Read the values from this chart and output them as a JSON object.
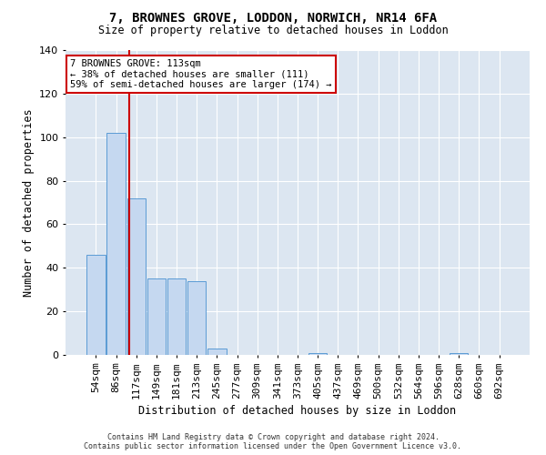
{
  "title_line1": "7, BROWNES GROVE, LODDON, NORWICH, NR14 6FA",
  "title_line2": "Size of property relative to detached houses in Loddon",
  "xlabel": "Distribution of detached houses by size in Loddon",
  "ylabel": "Number of detached properties",
  "bar_labels": [
    "54sqm",
    "86sqm",
    "117sqm",
    "149sqm",
    "181sqm",
    "213sqm",
    "245sqm",
    "277sqm",
    "309sqm",
    "341sqm",
    "373sqm",
    "405sqm",
    "437sqm",
    "469sqm",
    "500sqm",
    "532sqm",
    "564sqm",
    "596sqm",
    "628sqm",
    "660sqm",
    "692sqm"
  ],
  "bar_values": [
    46,
    102,
    72,
    35,
    35,
    34,
    3,
    0,
    0,
    0,
    0,
    1,
    0,
    0,
    0,
    0,
    0,
    0,
    1,
    0,
    0
  ],
  "bar_color": "#c5d8f0",
  "bar_edge_color": "#5b9bd5",
  "bg_color": "#dce6f1",
  "grid_color": "#ffffff",
  "vline_color": "#cc0000",
  "annotation_text": "7 BROWNES GROVE: 113sqm\n← 38% of detached houses are smaller (111)\n59% of semi-detached houses are larger (174) →",
  "annotation_box_color": "#ffffff",
  "annotation_box_edge": "#cc0000",
  "ylim": [
    0,
    140
  ],
  "yticks": [
    0,
    20,
    40,
    60,
    80,
    100,
    120,
    140
  ],
  "footer_line1": "Contains HM Land Registry data © Crown copyright and database right 2024.",
  "footer_line2": "Contains public sector information licensed under the Open Government Licence v3.0."
}
